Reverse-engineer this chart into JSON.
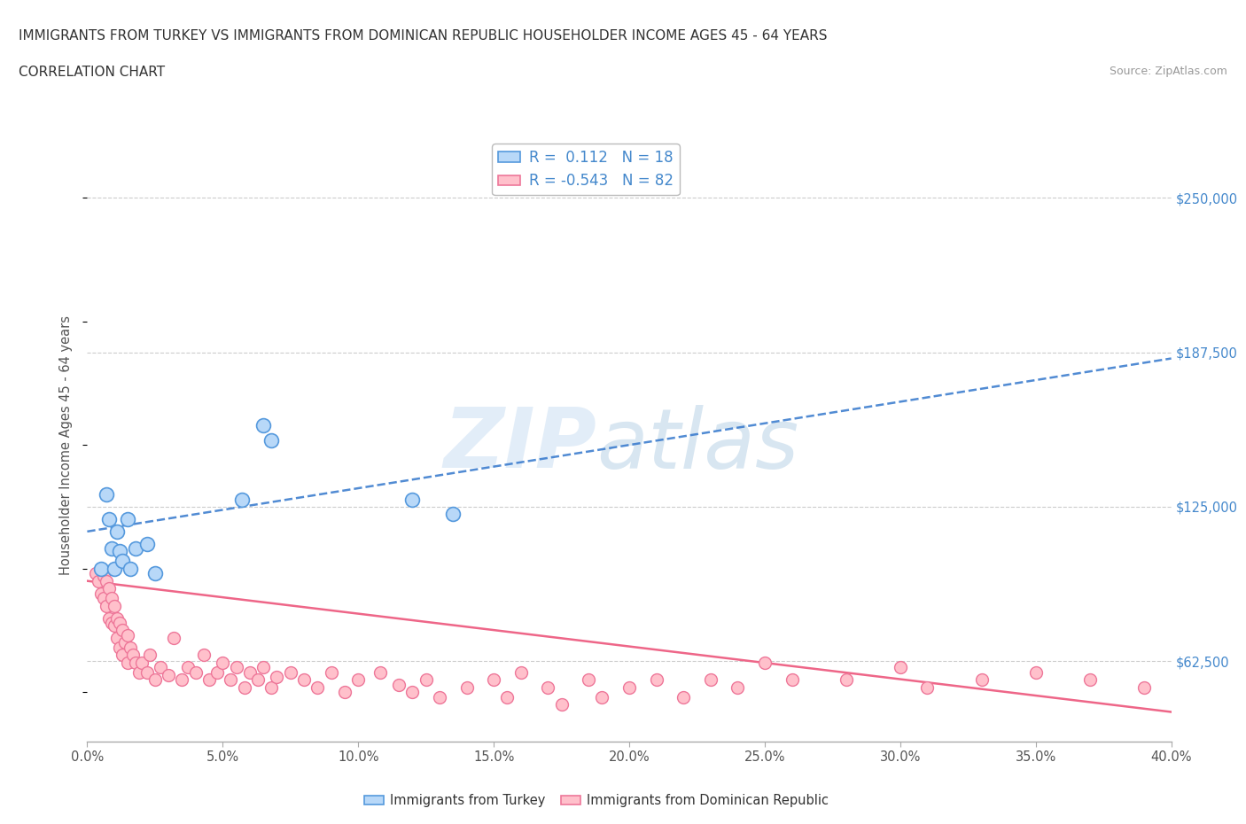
{
  "title_line1": "IMMIGRANTS FROM TURKEY VS IMMIGRANTS FROM DOMINICAN REPUBLIC HOUSEHOLDER INCOME AGES 45 - 64 YEARS",
  "title_line2": "CORRELATION CHART",
  "source_text": "Source: ZipAtlas.com",
  "ylabel": "Householder Income Ages 45 - 64 years",
  "xlim": [
    0.0,
    0.4
  ],
  "ylim": [
    30000,
    270000
  ],
  "xtick_values": [
    0.0,
    0.05,
    0.1,
    0.15,
    0.2,
    0.25,
    0.3,
    0.35,
    0.4
  ],
  "xtick_labels": [
    "0.0%",
    "5.0%",
    "10.0%",
    "15.0%",
    "20.0%",
    "25.0%",
    "30.0%",
    "35.0%",
    "40.0%"
  ],
  "ytick_values": [
    62500,
    125000,
    187500,
    250000
  ],
  "ytick_labels": [
    "$62,500",
    "$125,000",
    "$187,500",
    "$250,000"
  ],
  "turkey_color": "#b8d8f8",
  "turkey_edge_color": "#5599dd",
  "turkey_line_color": "#3377cc",
  "dr_color": "#ffc0cb",
  "dr_edge_color": "#ee7799",
  "dr_line_color": "#ee6688",
  "turkey_R": 0.112,
  "turkey_N": 18,
  "dr_R": -0.543,
  "dr_N": 82,
  "legend_color": "#4488cc",
  "watermark": "ZIPatlas",
  "turkey_x": [
    0.005,
    0.007,
    0.008,
    0.009,
    0.01,
    0.011,
    0.012,
    0.013,
    0.015,
    0.016,
    0.018,
    0.022,
    0.025,
    0.057,
    0.065,
    0.068,
    0.12,
    0.135
  ],
  "turkey_y": [
    100000,
    130000,
    120000,
    108000,
    100000,
    115000,
    107000,
    103000,
    120000,
    100000,
    108000,
    110000,
    98000,
    128000,
    158000,
    152000,
    128000,
    122000
  ],
  "dr_x": [
    0.003,
    0.004,
    0.005,
    0.005,
    0.006,
    0.006,
    0.007,
    0.007,
    0.008,
    0.008,
    0.009,
    0.009,
    0.01,
    0.01,
    0.011,
    0.011,
    0.012,
    0.012,
    0.013,
    0.013,
    0.014,
    0.015,
    0.015,
    0.016,
    0.017,
    0.018,
    0.019,
    0.02,
    0.022,
    0.023,
    0.025,
    0.027,
    0.03,
    0.032,
    0.035,
    0.037,
    0.04,
    0.043,
    0.045,
    0.048,
    0.05,
    0.053,
    0.055,
    0.058,
    0.06,
    0.063,
    0.065,
    0.068,
    0.07,
    0.075,
    0.08,
    0.085,
    0.09,
    0.095,
    0.1,
    0.108,
    0.115,
    0.12,
    0.125,
    0.13,
    0.14,
    0.15,
    0.155,
    0.16,
    0.17,
    0.175,
    0.185,
    0.19,
    0.2,
    0.21,
    0.22,
    0.23,
    0.24,
    0.25,
    0.26,
    0.28,
    0.3,
    0.31,
    0.33,
    0.35,
    0.37,
    0.39
  ],
  "dr_y": [
    98000,
    95000,
    100000,
    90000,
    97000,
    88000,
    95000,
    85000,
    92000,
    80000,
    88000,
    78000,
    85000,
    77000,
    80000,
    72000,
    78000,
    68000,
    75000,
    65000,
    70000,
    73000,
    62000,
    68000,
    65000,
    62000,
    58000,
    62000,
    58000,
    65000,
    55000,
    60000,
    57000,
    72000,
    55000,
    60000,
    58000,
    65000,
    55000,
    58000,
    62000,
    55000,
    60000,
    52000,
    58000,
    55000,
    60000,
    52000,
    56000,
    58000,
    55000,
    52000,
    58000,
    50000,
    55000,
    58000,
    53000,
    50000,
    55000,
    48000,
    52000,
    55000,
    48000,
    58000,
    52000,
    45000,
    55000,
    48000,
    52000,
    55000,
    48000,
    55000,
    52000,
    62000,
    55000,
    55000,
    60000,
    52000,
    55000,
    58000,
    55000,
    52000
  ]
}
